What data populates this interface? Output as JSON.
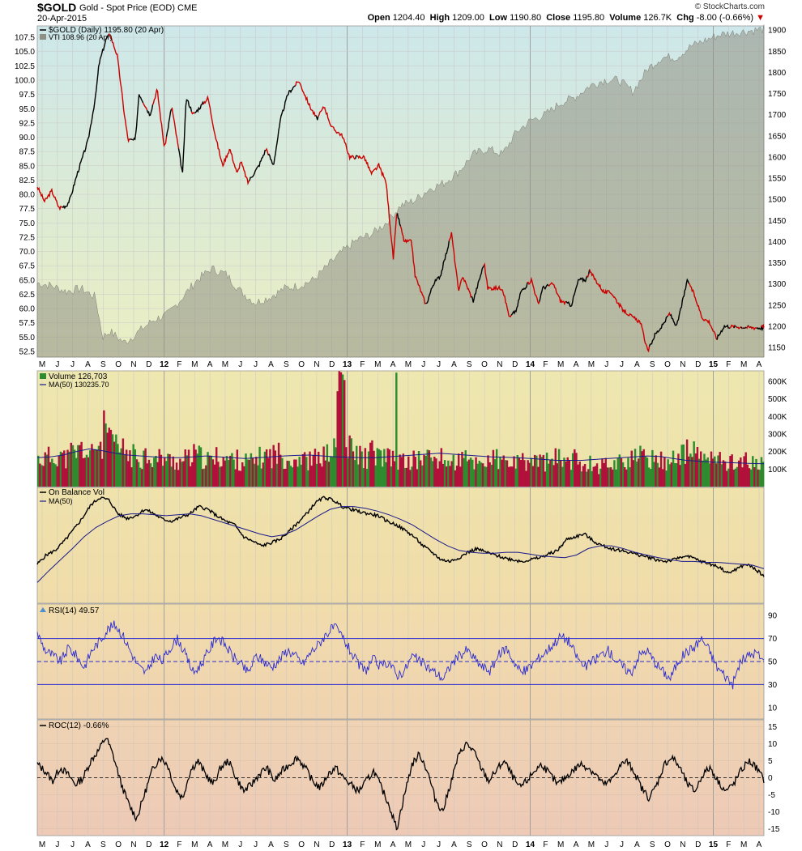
{
  "header": {
    "symbol": "$GOLD",
    "name": "Gold - Spot Price (EOD)",
    "exchange": "CME",
    "date": "20-Apr-2015",
    "brand": "© StockCharts.com",
    "open_label": "Open",
    "open": "1204.40",
    "high_label": "High",
    "high": "1209.00",
    "low_label": "Low",
    "low": "1190.80",
    "close_label": "Close",
    "close": "1195.80",
    "volume_label": "Volume",
    "volume": "126.7K",
    "chg_label": "Chg",
    "chg": "-8.00 (-0.66%)"
  },
  "chart_data": [
    {
      "type": "line",
      "panel": "price",
      "legend": [
        "$GOLD (Daily) 1195.80 (20 Apr)",
        "VTI 108.96 (20 Apr)"
      ],
      "x_ticks": [
        "M",
        "J",
        "J",
        "A",
        "S",
        "O",
        "N",
        "D",
        "12",
        "F",
        "M",
        "A",
        "M",
        "J",
        "J",
        "A",
        "S",
        "O",
        "N",
        "D",
        "13",
        "F",
        "M",
        "A",
        "M",
        "J",
        "J",
        "A",
        "S",
        "O",
        "N",
        "D",
        "14",
        "F",
        "M",
        "A",
        "M",
        "J",
        "J",
        "A",
        "S",
        "O",
        "N",
        "D",
        "15",
        "F",
        "M",
        "A"
      ],
      "left_axis": {
        "label_values": [
          107.5,
          105.0,
          102.5,
          100.0,
          97.5,
          95.0,
          92.5,
          90.0,
          87.5,
          85.0,
          82.5,
          80.0,
          77.5,
          75.0,
          72.5,
          70.0,
          67.5,
          65.0,
          62.5,
          60.0,
          57.5,
          55.0,
          52.5
        ],
        "range": [
          51.5,
          109.5
        ]
      },
      "right_axis": {
        "label_values": [
          1900,
          1850,
          1800,
          1750,
          1700,
          1650,
          1600,
          1550,
          1500,
          1450,
          1400,
          1350,
          1300,
          1250,
          1200,
          1150
        ],
        "range": [
          1127,
          1910
        ]
      },
      "series": [
        {
          "name": "$GOLD (Daily)",
          "axis": "right",
          "color_up": "#000000",
          "color_down": "#cc0000",
          "x_frac": [
            0,
            0.01,
            0.02,
            0.03,
            0.04,
            0.045,
            0.055,
            0.07,
            0.08,
            0.085,
            0.095,
            0.1,
            0.11,
            0.12,
            0.125,
            0.135,
            0.14,
            0.155,
            0.165,
            0.175,
            0.185,
            0.2,
            0.205,
            0.215,
            0.235,
            0.245,
            0.255,
            0.265,
            0.275,
            0.28,
            0.29,
            0.305,
            0.315,
            0.325,
            0.335,
            0.345,
            0.36,
            0.365,
            0.375,
            0.385,
            0.395,
            0.405,
            0.42,
            0.43,
            0.44,
            0.45,
            0.46,
            0.47,
            0.48,
            0.49,
            0.495,
            0.505,
            0.515,
            0.52,
            0.535,
            0.545,
            0.555,
            0.57,
            0.58,
            0.585,
            0.6,
            0.615,
            0.62,
            0.64,
            0.65,
            0.66,
            0.665,
            0.68,
            0.69,
            0.695,
            0.71,
            0.72,
            0.735,
            0.745,
            0.755,
            0.76,
            0.78,
            0.79,
            0.805,
            0.82,
            0.83,
            0.84,
            0.85,
            0.86,
            0.87,
            0.88,
            0.895,
            0.905,
            0.915,
            0.925,
            0.935,
            0.945,
            1.0
          ],
          "values": [
            1530,
            1495,
            1520,
            1480,
            1485,
            1500,
            1560,
            1640,
            1740,
            1820,
            1880,
            1890,
            1840,
            1700,
            1640,
            1640,
            1750,
            1700,
            1760,
            1620,
            1720,
            1560,
            1740,
            1700,
            1740,
            1650,
            1580,
            1620,
            1560,
            1590,
            1540,
            1580,
            1620,
            1580,
            1690,
            1750,
            1780,
            1760,
            1720,
            1690,
            1720,
            1670,
            1650,
            1600,
            1600,
            1600,
            1560,
            1580,
            1540,
            1360,
            1470,
            1400,
            1400,
            1320,
            1250,
            1300,
            1320,
            1420,
            1280,
            1320,
            1260,
            1350,
            1290,
            1290,
            1220,
            1240,
            1280,
            1310,
            1250,
            1290,
            1300,
            1260,
            1250,
            1310,
            1310,
            1330,
            1280,
            1280,
            1240,
            1220,
            1210,
            1140,
            1180,
            1200,
            1230,
            1200,
            1310,
            1270,
            1220,
            1210,
            1170,
            1200,
            1195.8
          ]
        },
        {
          "name": "VTI",
          "axis": "left",
          "color": "#8a8a80",
          "x_frac": [
            0,
            0.02,
            0.04,
            0.06,
            0.08,
            0.09,
            0.1,
            0.12,
            0.14,
            0.16,
            0.18,
            0.2,
            0.22,
            0.24,
            0.26,
            0.28,
            0.3,
            0.32,
            0.34,
            0.36,
            0.38,
            0.4,
            0.42,
            0.44,
            0.46,
            0.48,
            0.5,
            0.52,
            0.54,
            0.56,
            0.58,
            0.6,
            0.62,
            0.64,
            0.66,
            0.68,
            0.7,
            0.72,
            0.74,
            0.76,
            0.78,
            0.8,
            0.82,
            0.84,
            0.86,
            0.88,
            0.9,
            0.92,
            0.94,
            1.0
          ],
          "values": [
            64.5,
            64,
            63,
            63.5,
            62,
            55,
            56,
            54,
            56,
            58,
            59,
            62,
            65,
            67,
            66,
            63,
            61,
            62,
            63.5,
            64,
            65,
            67.5,
            70,
            72,
            73,
            75,
            78,
            79,
            81,
            82,
            84,
            87,
            88,
            87,
            91,
            93,
            94,
            96,
            97,
            99,
            100,
            100,
            98,
            102,
            104,
            104,
            106,
            107,
            108,
            108.96
          ]
        }
      ]
    },
    {
      "type": "bar",
      "panel": "volume",
      "legend": [
        "Volume 126,703",
        "MA(50) 130235.70"
      ],
      "right_axis": {
        "label_values": [
          "600K",
          "500K",
          "400K",
          "300K",
          "200K",
          "100K"
        ],
        "range_k": [
          0,
          660
        ]
      },
      "sample_values_k": [
        170,
        180,
        200,
        175,
        210,
        230,
        195,
        260,
        340,
        250,
        220,
        190,
        180,
        200,
        165,
        175,
        160,
        150,
        170,
        190,
        175,
        160,
        180,
        170,
        165,
        155,
        150,
        175,
        190,
        200,
        180,
        170,
        180,
        160,
        170,
        190,
        220,
        650,
        230,
        200,
        180,
        210,
        185,
        170,
        160,
        150,
        160,
        175,
        180,
        170,
        160,
        150,
        165,
        155,
        150,
        160,
        170,
        150,
        145,
        140,
        150,
        160,
        155,
        150,
        170,
        175,
        165,
        150,
        140,
        130,
        140,
        150,
        160,
        170,
        180,
        175,
        165,
        160,
        170,
        190,
        220,
        200,
        180,
        170,
        160,
        150,
        165,
        155,
        140,
        130
      ],
      "ma_values_k": [
        165,
        170,
        180,
        200,
        215,
        205,
        190,
        180,
        175,
        170,
        165,
        165,
        170,
        175,
        170,
        165,
        160,
        165,
        170,
        175,
        178,
        180,
        175,
        170,
        168,
        165,
        165,
        170,
        175,
        180,
        185,
        190,
        185,
        180,
        175,
        170,
        168,
        165,
        160,
        155,
        150,
        150,
        150,
        155,
        160,
        165,
        170,
        175,
        172,
        160,
        150,
        145,
        140,
        138,
        135,
        132,
        130
      ]
    },
    {
      "type": "line",
      "panel": "obv",
      "legend": [
        "On Balance Vol",
        "MA(50)"
      ],
      "norm_values": [
        0.25,
        0.35,
        0.4,
        0.5,
        0.62,
        0.75,
        0.9,
        0.98,
        0.95,
        0.8,
        0.75,
        0.78,
        0.85,
        0.8,
        0.74,
        0.72,
        0.76,
        0.8,
        0.88,
        0.85,
        0.78,
        0.72,
        0.68,
        0.55,
        0.5,
        0.45,
        0.48,
        0.52,
        0.6,
        0.7,
        0.8,
        0.92,
        0.98,
        0.95,
        0.88,
        0.85,
        0.82,
        0.8,
        0.78,
        0.72,
        0.68,
        0.62,
        0.55,
        0.45,
        0.38,
        0.3,
        0.28,
        0.32,
        0.38,
        0.42,
        0.38,
        0.35,
        0.32,
        0.3,
        0.28,
        0.3,
        0.32,
        0.36,
        0.4,
        0.52,
        0.55,
        0.58,
        0.5,
        0.45,
        0.42,
        0.4,
        0.38,
        0.35,
        0.33,
        0.3,
        0.28,
        0.3,
        0.34,
        0.32,
        0.28,
        0.25,
        0.22,
        0.15,
        0.2,
        0.25,
        0.2,
        0.12
      ],
      "ma_norm": [
        0.05,
        0.18,
        0.3,
        0.42,
        0.55,
        0.65,
        0.72,
        0.78,
        0.8,
        0.8,
        0.79,
        0.78,
        0.79,
        0.8,
        0.78,
        0.74,
        0.7,
        0.66,
        0.62,
        0.58,
        0.55,
        0.57,
        0.62,
        0.7,
        0.78,
        0.85,
        0.88,
        0.88,
        0.86,
        0.83,
        0.79,
        0.74,
        0.68,
        0.6,
        0.52,
        0.45,
        0.4,
        0.38,
        0.37,
        0.37,
        0.38,
        0.38,
        0.36,
        0.34,
        0.33,
        0.32,
        0.35,
        0.42,
        0.45,
        0.45,
        0.42,
        0.38,
        0.35,
        0.32,
        0.3,
        0.28,
        0.28,
        0.27,
        0.27,
        0.26,
        0.25,
        0.24,
        0.2
      ]
    },
    {
      "type": "line",
      "panel": "rsi",
      "legend": [
        "RSI(14) 49.57"
      ],
      "right_axis": {
        "label_values": [
          90,
          70,
          50,
          30,
          10
        ],
        "range": [
          0,
          100
        ]
      },
      "reference_lines": [
        70,
        50,
        30
      ],
      "values": [
        75,
        60,
        55,
        50,
        62,
        55,
        45,
        60,
        68,
        78,
        82,
        72,
        58,
        45,
        40,
        55,
        50,
        62,
        70,
        55,
        40,
        48,
        60,
        72,
        65,
        55,
        48,
        40,
        55,
        50,
        45,
        52,
        60,
        55,
        48,
        58,
        65,
        74,
        80,
        72,
        60,
        48,
        42,
        52,
        45,
        50,
        38,
        42,
        55,
        50,
        45,
        40,
        35,
        48,
        55,
        60,
        52,
        45,
        42,
        55,
        62,
        50,
        40,
        45,
        52,
        58,
        65,
        72,
        68,
        55,
        45,
        50,
        55,
        60,
        52,
        45,
        40,
        55,
        60,
        50,
        42,
        35,
        50,
        58,
        62,
        70,
        60,
        45,
        38,
        30,
        50,
        55,
        58,
        49.57
      ]
    },
    {
      "type": "line",
      "panel": "roc",
      "legend": [
        "ROC(12) -0.66%"
      ],
      "right_axis": {
        "label_values": [
          15,
          10,
          5,
          0,
          -5,
          -10,
          -15
        ],
        "range": [
          -17,
          17
        ]
      },
      "reference_lines": [
        0
      ],
      "values": [
        4,
        2,
        -1,
        3,
        1,
        -2,
        0,
        5,
        8,
        12,
        6,
        -2,
        -8,
        -12,
        -5,
        2,
        6,
        4,
        -3,
        -6,
        2,
        5,
        1,
        -2,
        3,
        5,
        0,
        -4,
        -2,
        1,
        3,
        -1,
        2,
        4,
        6,
        3,
        -1,
        -3,
        1,
        3,
        0,
        -2,
        -4,
        -1,
        2,
        -3,
        -8,
        -15,
        -5,
        4,
        7,
        2,
        -6,
        -10,
        -2,
        6,
        10,
        8,
        3,
        -1,
        2,
        5,
        1,
        -3,
        -1,
        2,
        4,
        1,
        -2,
        0,
        2,
        4,
        3,
        1,
        -2,
        -1,
        3,
        5,
        2,
        -3,
        -6,
        -2,
        4,
        6,
        3,
        -2,
        -4,
        1,
        3,
        -1,
        -4,
        -2,
        2,
        5,
        3,
        -0.66
      ]
    }
  ],
  "x_axis_bottom_ticks": [
    "M",
    "J",
    "J",
    "A",
    "S",
    "O",
    "N",
    "D",
    "12",
    "F",
    "M",
    "A",
    "M",
    "J",
    "J",
    "A",
    "S",
    "O",
    "N",
    "D",
    "13",
    "F",
    "M",
    "A",
    "M",
    "J",
    "J",
    "A",
    "S",
    "O",
    "N",
    "D",
    "14",
    "F",
    "M",
    "A",
    "M",
    "J",
    "J",
    "A",
    "S",
    "O",
    "N",
    "D",
    "15",
    "F",
    "M",
    "A"
  ]
}
